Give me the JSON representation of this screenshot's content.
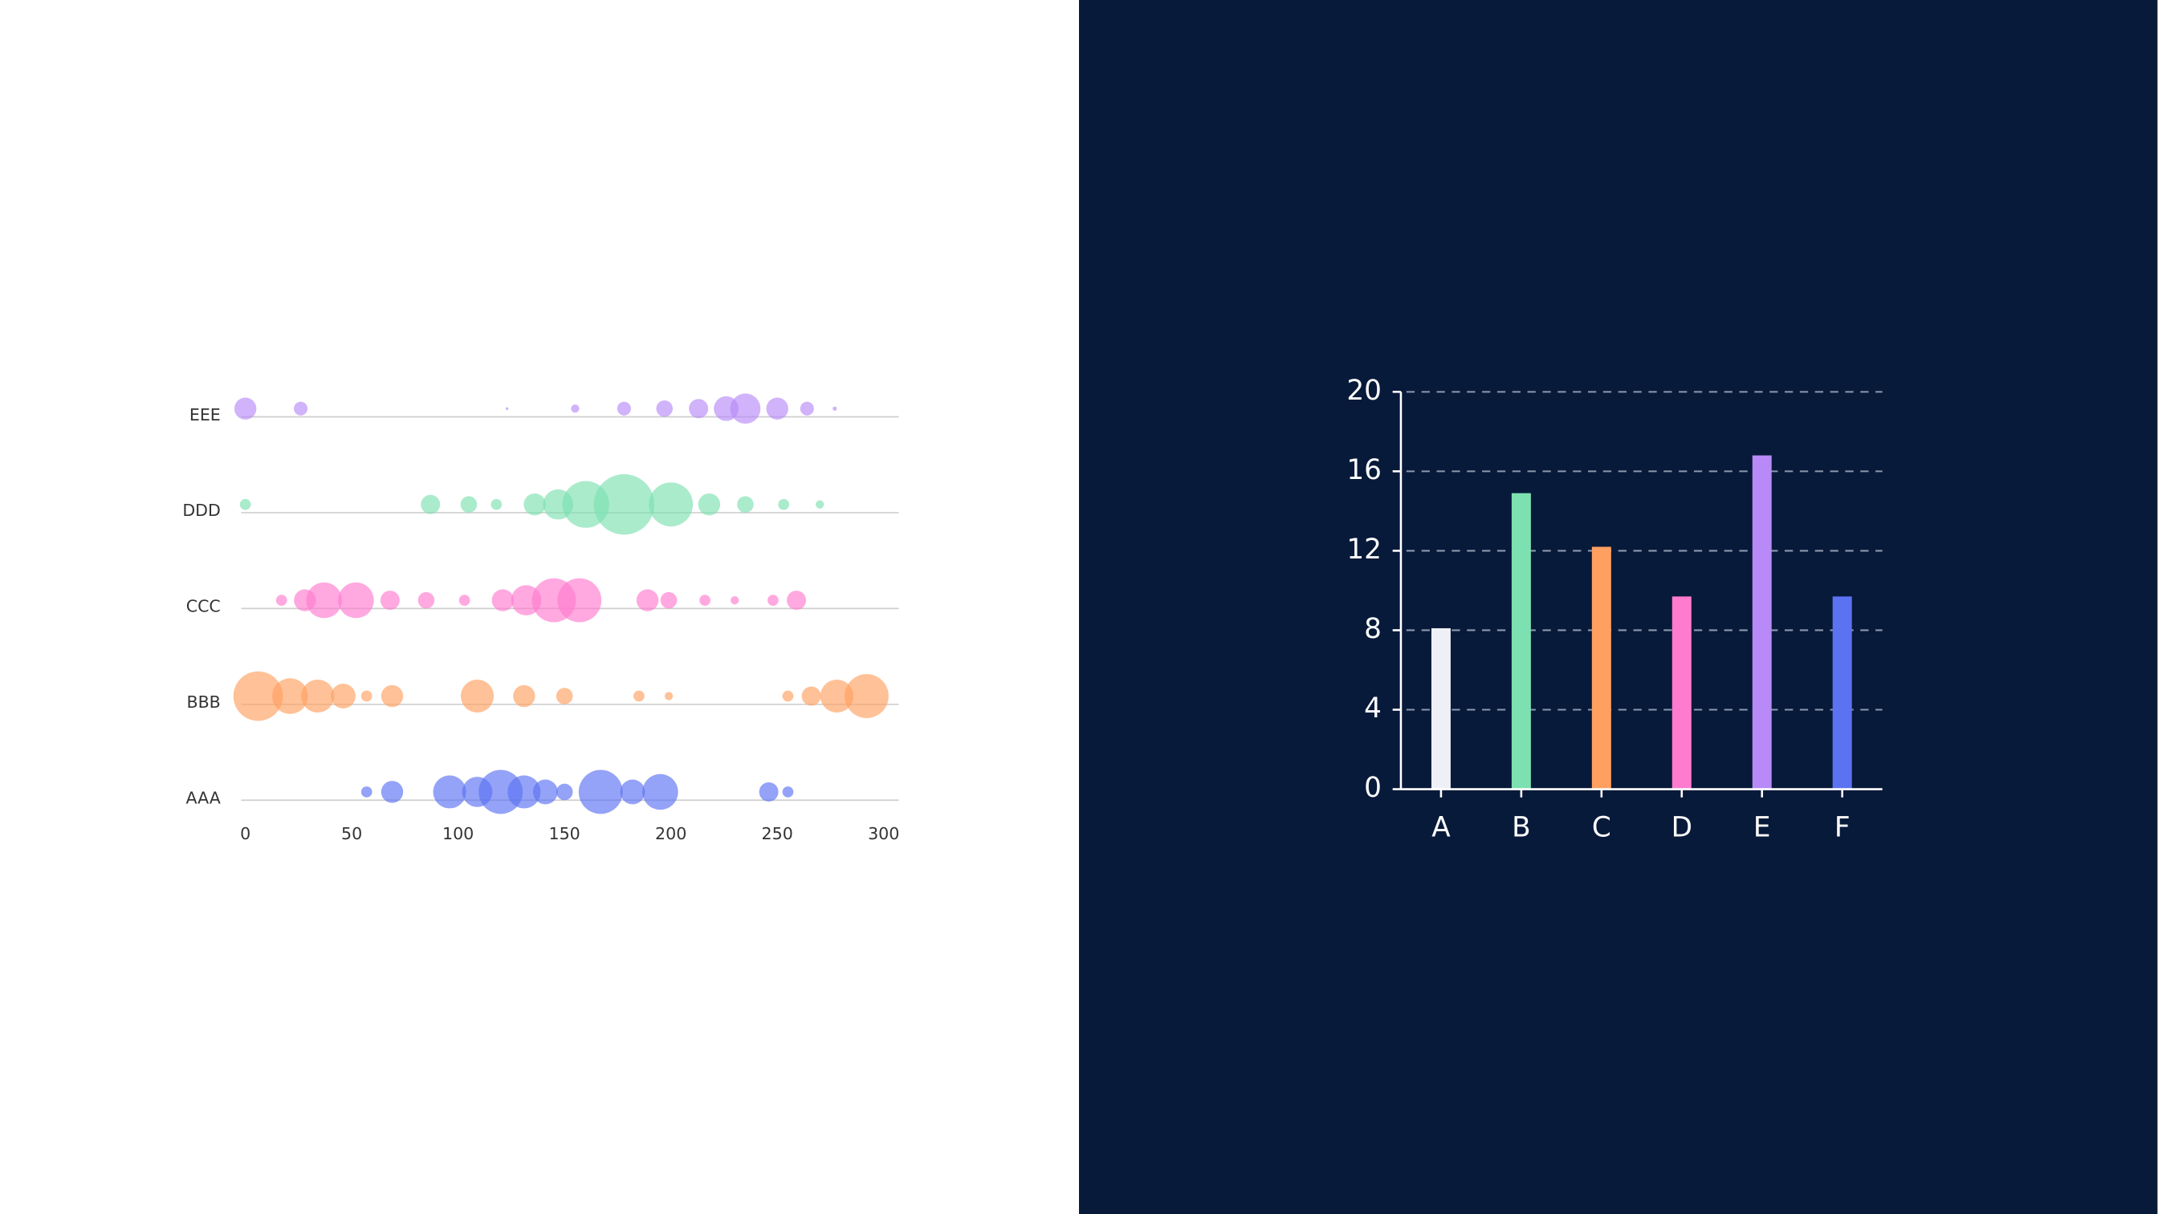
{
  "chart_data": [
    {
      "type": "scatter",
      "xlim": [
        0,
        300
      ],
      "xticks": [
        0,
        50,
        100,
        150,
        200,
        250,
        300
      ],
      "series": [
        {
          "name": "AAA",
          "color": "#5b72f2",
          "x": [
            57,
            69,
            96,
            109,
            120,
            131,
            141,
            150,
            167,
            182,
            195,
            246,
            255
          ],
          "sizes": [
            4,
            8,
            12,
            11,
            16,
            12,
            9,
            6,
            16,
            9,
            13,
            7,
            4
          ]
        },
        {
          "name": "BBB",
          "color": "#ffa060",
          "x": [
            6,
            21,
            34,
            46,
            57,
            69,
            109,
            131,
            150,
            185,
            199,
            255,
            266,
            278,
            292
          ],
          "sizes": [
            18,
            13,
            12,
            9,
            4,
            8,
            12,
            8,
            6,
            4,
            3,
            4,
            7,
            12,
            16
          ]
        },
        {
          "name": "CCC",
          "color": "#ff7bcf",
          "x": [
            17,
            28,
            37,
            52,
            68,
            85,
            103,
            121,
            132,
            145,
            157,
            189,
            199,
            216,
            230,
            248,
            259
          ],
          "sizes": [
            4,
            8,
            13,
            13,
            7,
            6,
            4,
            8,
            11,
            16,
            16,
            8,
            6,
            4,
            3,
            4,
            7
          ]
        },
        {
          "name": "DDD",
          "color": "#7de0b0",
          "x": [
            0,
            87,
            105,
            118,
            136,
            147,
            160,
            178,
            200,
            218,
            235,
            253,
            270
          ],
          "sizes": [
            4,
            7,
            6,
            4,
            8,
            11,
            17,
            22,
            16,
            8,
            6,
            4,
            3
          ]
        },
        {
          "name": "EEE",
          "color": "#b78af7",
          "x": [
            0,
            26,
            123,
            155,
            178,
            197,
            213,
            226,
            235,
            250,
            264,
            277
          ],
          "sizes": [
            8,
            5,
            1,
            3,
            5,
            6,
            7,
            9,
            11,
            8,
            5,
            1.5
          ]
        }
      ]
    },
    {
      "type": "bar",
      "categories": [
        "A",
        "B",
        "C",
        "D",
        "E",
        "F"
      ],
      "values": [
        8.1,
        14.9,
        12.2,
        9.7,
        16.8,
        9.7
      ],
      "colors": [
        "#eef0f6",
        "#7de0b0",
        "#ffa060",
        "#ff7bcf",
        "#b78af7",
        "#5b72f2"
      ],
      "ylim": [
        0,
        20
      ],
      "yticks": [
        0,
        4,
        8,
        12,
        16,
        20
      ],
      "grid": true
    }
  ]
}
